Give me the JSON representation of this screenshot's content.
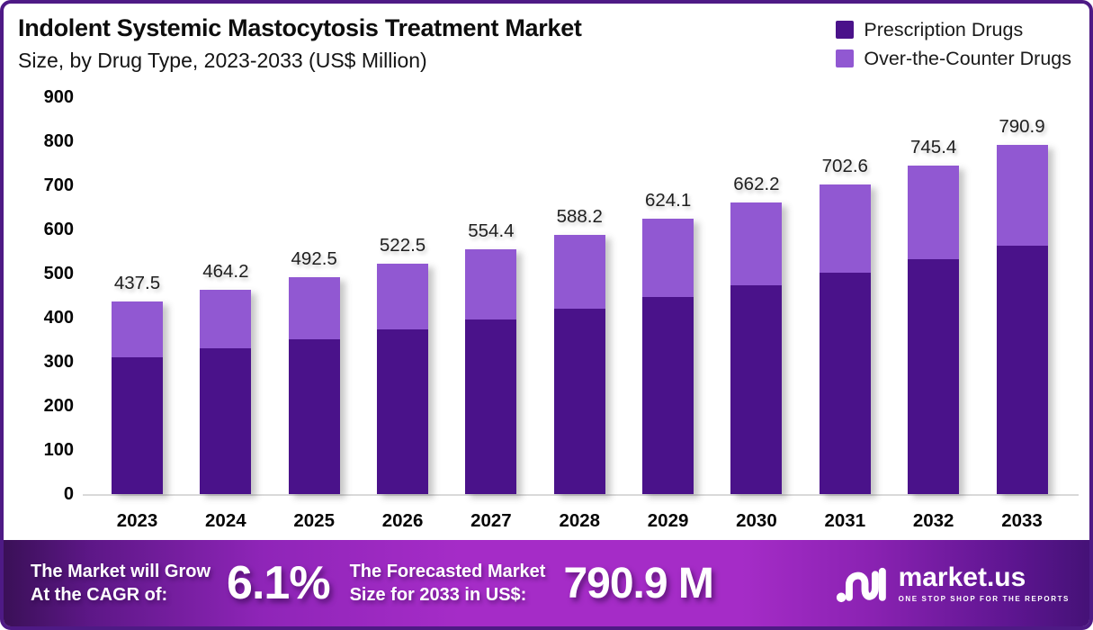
{
  "header": {
    "title": "Indolent Systemic Mastocytosis Treatment Market",
    "subtitle": "Size, by Drug Type, 2023-2033 (US$ Million)"
  },
  "legend": {
    "items": [
      {
        "label": "Prescription Drugs",
        "color": "#4a128a"
      },
      {
        "label": "Over-the-Counter Drugs",
        "color": "#9158d2"
      }
    ]
  },
  "chart_data": {
    "type": "bar",
    "stacked": true,
    "title": "Indolent Systemic Mastocytosis Treatment Market Size, by Drug Type, 2023-2033 (US$ Million)",
    "categories": [
      "2023",
      "2024",
      "2025",
      "2026",
      "2027",
      "2028",
      "2029",
      "2030",
      "2031",
      "2032",
      "2033"
    ],
    "series": [
      {
        "name": "Prescription Drugs",
        "color": "#4a128a",
        "values": [
          310.6,
          330.0,
          350.3,
          372.5,
          395.4,
          419.4,
          446.0,
          473.5,
          501.5,
          532.0,
          564.0
        ]
      },
      {
        "name": "Over-the-Counter Drugs",
        "color": "#9158d2",
        "values": [
          126.9,
          134.2,
          142.2,
          150.0,
          159.0,
          168.8,
          178.1,
          188.7,
          201.1,
          213.4,
          226.9
        ]
      }
    ],
    "totals": [
      437.5,
      464.2,
      492.5,
      522.5,
      554.4,
      588.2,
      624.1,
      662.2,
      702.6,
      745.4,
      790.9
    ],
    "ylim": [
      0,
      900
    ],
    "yticks": [
      0,
      100,
      200,
      300,
      400,
      500,
      600,
      700,
      800,
      900
    ],
    "xlabel": "",
    "ylabel": "",
    "grid": false,
    "legend_position": "top-right"
  },
  "banner": {
    "cagr_label_line1": "The Market will Grow",
    "cagr_label_line2": "At the CAGR of:",
    "cagr_value": "6.1%",
    "forecast_label_line1": "The Forecasted Market",
    "forecast_label_line2": "Size for 2033 in US$:",
    "forecast_value": "790.9 M",
    "brand": {
      "name": "market.us",
      "tagline": "ONE STOP SHOP FOR THE REPORTS"
    }
  },
  "colors": {
    "card_border": "#4e1a85",
    "axis_line": "#d9d9d9",
    "banner_gradient_left": "#3a1057",
    "banner_gradient_middle": "#a52cc7",
    "banner_gradient_right": "#451277"
  }
}
